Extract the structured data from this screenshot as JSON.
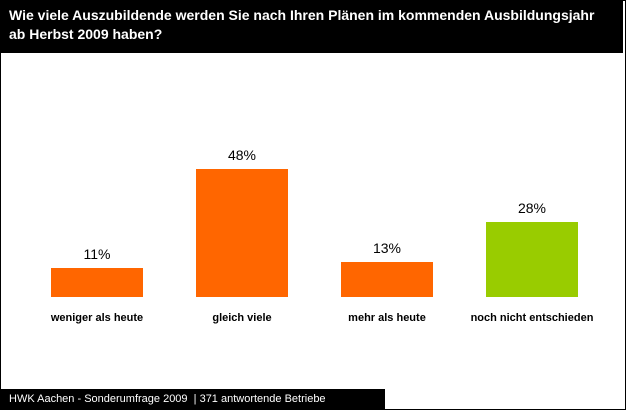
{
  "chart_data": {
    "type": "bar",
    "title": "Wie viele Auszubildende werden Sie nach Ihren Plänen im kommenden Ausbildungsjahr ab Herbst 2009 haben?",
    "categories": [
      "weniger als heute",
      "gleich viele",
      "mehr als heute",
      "noch nicht entschieden"
    ],
    "values": [
      11,
      48,
      13,
      28
    ],
    "value_labels": [
      "11%",
      "48%",
      "13%",
      "28%"
    ],
    "colors": [
      "#ff6600",
      "#ff6600",
      "#ff6600",
      "#99cc00"
    ],
    "footer": "HWK Aachen - Sonderumfrage 2009  | 371 antwortende Betriebe"
  }
}
